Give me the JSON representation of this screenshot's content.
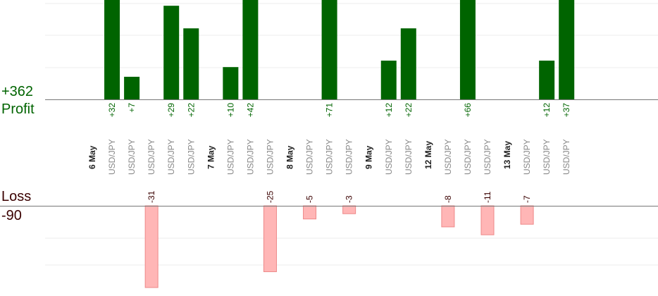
{
  "summary": {
    "profit_total": "+362",
    "profit_label": "Profit",
    "loss_label": "Loss",
    "loss_total": "-90"
  },
  "colors": {
    "profit_bar": "#006400",
    "loss_bar_fill": "#ffb6b6",
    "loss_bar_stroke": "#ee8888",
    "profit_text": "#006400",
    "loss_text": "#3a0000",
    "date_text": "#222222",
    "pair_text": "#888888",
    "grid": "#eeeeee",
    "baseline": "#777777"
  },
  "chart_data": {
    "type": "bar",
    "grid": true,
    "profit_ylim": [
      0,
      31
    ],
    "loss_ylim": [
      0,
      31
    ],
    "categories": [
      {
        "kind": "date",
        "label": "6 May"
      },
      {
        "kind": "trade",
        "label": "USD/JPY",
        "value": 32
      },
      {
        "kind": "trade",
        "label": "USD/JPY",
        "value": 7
      },
      {
        "kind": "trade",
        "label": "USD/JPY",
        "value": -31
      },
      {
        "kind": "trade",
        "label": "USD/JPY",
        "value": 29
      },
      {
        "kind": "trade",
        "label": "USD/JPY",
        "value": 22
      },
      {
        "kind": "date",
        "label": "7 May"
      },
      {
        "kind": "trade",
        "label": "USD/JPY",
        "value": 10
      },
      {
        "kind": "trade",
        "label": "USD/JPY",
        "value": 42
      },
      {
        "kind": "trade",
        "label": "USD/JPY",
        "value": -25
      },
      {
        "kind": "date",
        "label": "8 May"
      },
      {
        "kind": "trade",
        "label": "USD/JPY",
        "value": -5
      },
      {
        "kind": "trade",
        "label": "USD/JPY",
        "value": 71
      },
      {
        "kind": "trade",
        "label": "USD/JPY",
        "value": -3
      },
      {
        "kind": "date",
        "label": "9 May"
      },
      {
        "kind": "trade",
        "label": "USD/JPY",
        "value": 12
      },
      {
        "kind": "trade",
        "label": "USD/JPY",
        "value": 22
      },
      {
        "kind": "date",
        "label": "12 May"
      },
      {
        "kind": "trade",
        "label": "USD/JPY",
        "value": -8
      },
      {
        "kind": "trade",
        "label": "USD/JPY",
        "value": 66
      },
      {
        "kind": "trade",
        "label": "USD/JPY",
        "value": -11
      },
      {
        "kind": "date",
        "label": "13 May"
      },
      {
        "kind": "trade",
        "label": "USD/JPY",
        "value": -7
      },
      {
        "kind": "trade",
        "label": "USD/JPY",
        "value": 12
      },
      {
        "kind": "trade",
        "label": "USD/JPY",
        "value": 37
      }
    ]
  }
}
